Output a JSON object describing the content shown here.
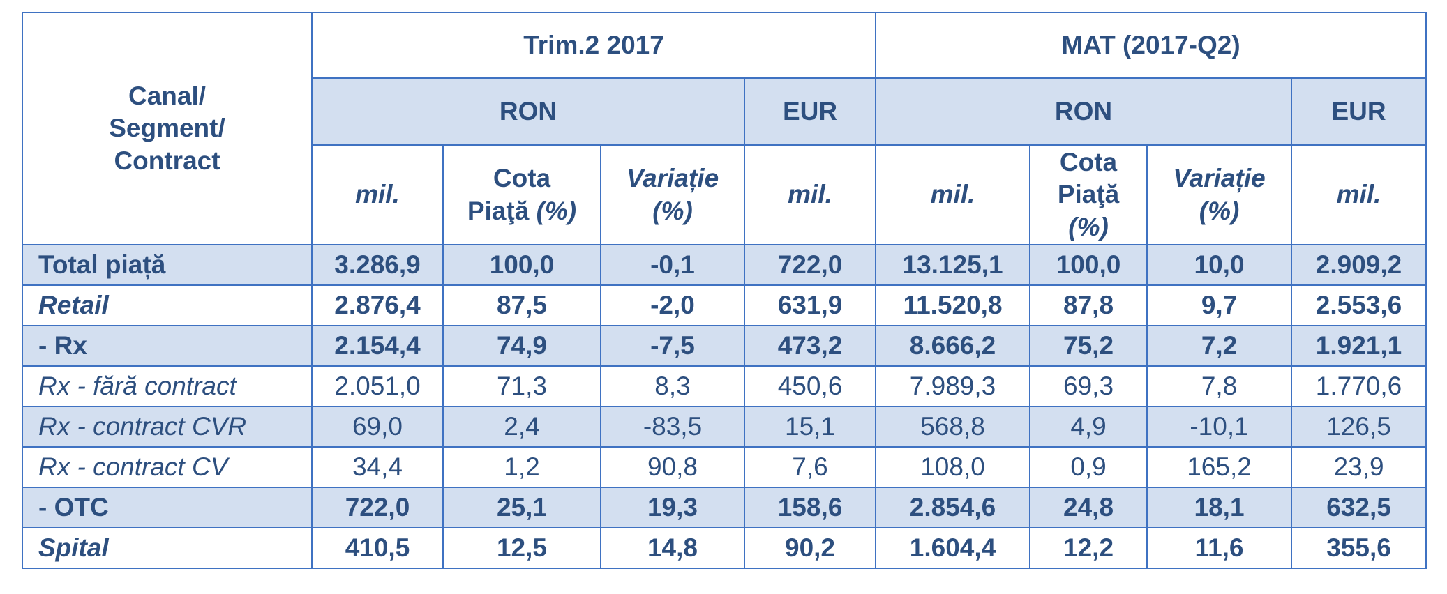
{
  "header": {
    "corner_lines": [
      "Canal/",
      "Segment/",
      "Contract"
    ],
    "period1": "Trim.2 2017",
    "period2": "MAT (2017-Q2)",
    "currency_ron": "RON",
    "currency_eur": "EUR",
    "mil": "mil.",
    "cota_line1": "Cota",
    "cota_line2a": "Piaţă",
    "cota_line2b": "(%)",
    "cota2_line1": "Cota",
    "cota2_line2": "Piaţă",
    "cota2_line3": "(%)",
    "variatie_line1": "Variație",
    "variatie_line2": "(%)"
  },
  "rows": [
    {
      "label": "Total piață",
      "cells": [
        "3.286,9",
        "100,0",
        "-0,1",
        "722,0",
        "13.125,1",
        "100,0",
        "10,0",
        "2.909,2"
      ]
    },
    {
      "label": "Retail",
      "cells": [
        "2.876,4",
        "87,5",
        "-2,0",
        "631,9",
        "11.520,8",
        "87,8",
        "9,7",
        "2.553,6"
      ]
    },
    {
      "label": "- Rx",
      "cells": [
        "2.154,4",
        "74,9",
        "-7,5",
        "473,2",
        "8.666,2",
        "75,2",
        "7,2",
        "1.921,1"
      ]
    },
    {
      "label": "Rx - fără contract",
      "cells": [
        "2.051,0",
        "71,3",
        "8,3",
        "450,6",
        "7.989,3",
        "69,3",
        "7,8",
        "1.770,6"
      ]
    },
    {
      "label": "Rx - contract CVR",
      "cells": [
        "69,0",
        "2,4",
        "-83,5",
        "15,1",
        "568,8",
        "4,9",
        "-10,1",
        "126,5"
      ]
    },
    {
      "label": "Rx - contract CV",
      "cells": [
        "34,4",
        "1,2",
        "90,8",
        "7,6",
        "108,0",
        "0,9",
        "165,2",
        "23,9"
      ]
    },
    {
      "label": "- OTC",
      "cells": [
        "722,0",
        "25,1",
        "19,3",
        "158,6",
        "2.854,6",
        "24,8",
        "18,1",
        "632,5"
      ]
    },
    {
      "label": "Spital",
      "cells": [
        "410,5",
        "12,5",
        "14,8",
        "90,2",
        "1.604,4",
        "12,2",
        "11,6",
        "355,6"
      ]
    }
  ],
  "colors": {
    "border": "#3f72c2",
    "shade": "#d3dff0",
    "text": "#2d4f7f"
  }
}
